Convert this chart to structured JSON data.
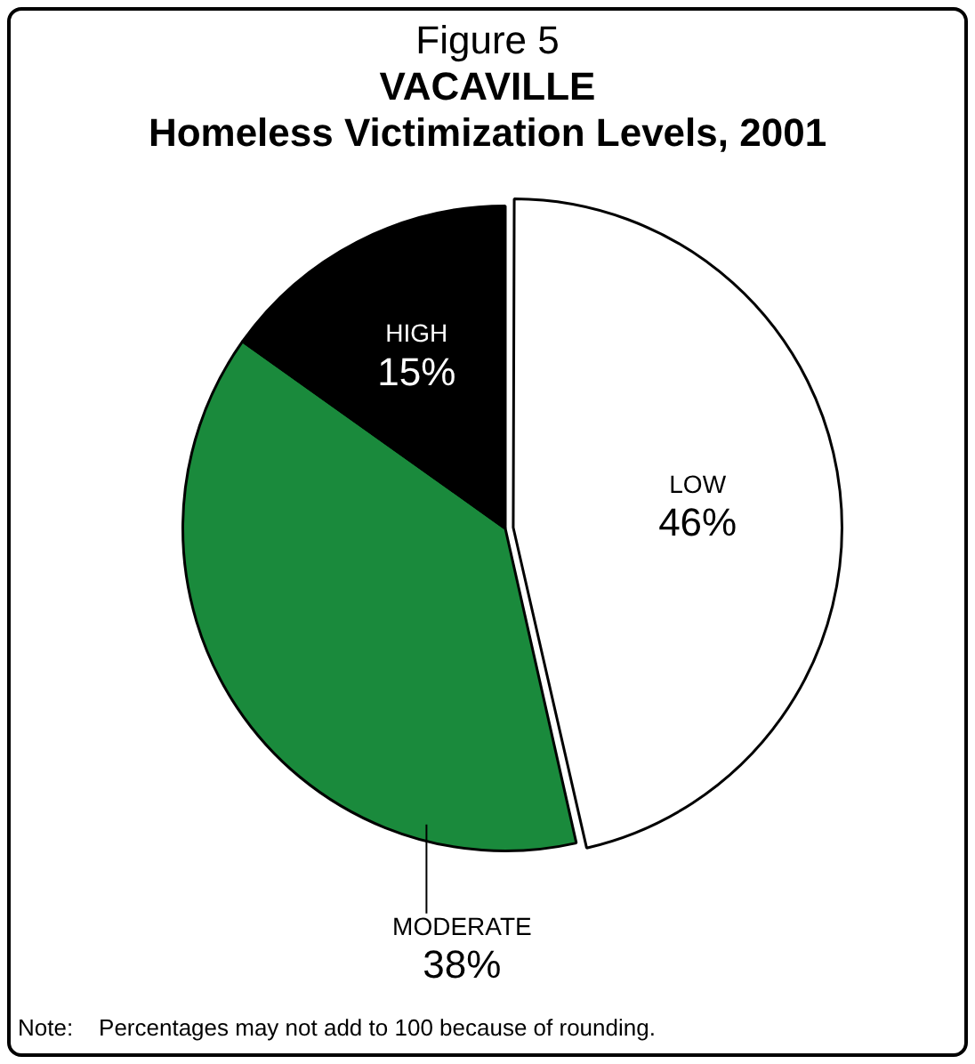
{
  "chart_data": {
    "type": "pie",
    "title": "Figure 5",
    "subtitle": "VACAVILLE\nHomeless Victimization Levels, 2001",
    "categories": [
      "LOW",
      "MODERATE",
      "HIGH"
    ],
    "values": [
      46,
      38,
      15
    ],
    "value_labels": [
      "46%",
      "38%",
      "15%"
    ],
    "colors": [
      "#ffffff",
      "#1a8a3c",
      "#000000"
    ],
    "legend": false,
    "annotations": [
      "Note:    Percentages may not add to 100 because of rounding."
    ]
  }
}
